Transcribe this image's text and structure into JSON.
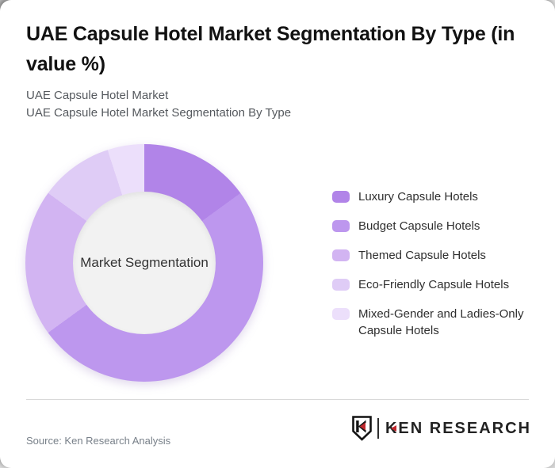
{
  "page": {
    "title": "UAE Capsule Hotel Market Segmentation By Type (in value %)",
    "subtitle_line1": "UAE Capsule Hotel Market",
    "subtitle_line2": "UAE Capsule Hotel Market Segmentation By Type",
    "source": "Source: Ken Research Analysis",
    "logo_text": "KEN RESEARCH",
    "logo_icon": "ken-research-shield-k-icon"
  },
  "chart_data": {
    "type": "pie",
    "donut": true,
    "title": "UAE Capsule Hotel Market Segmentation By Type (in value %)",
    "center_label": "Market Segmentation",
    "categories": [
      "Luxury Capsule Hotels",
      "Budget Capsule Hotels",
      "Themed Capsule Hotels",
      "Eco-Friendly Capsule Hotels",
      "Mixed-Gender and Ladies-Only Capsule Hotels"
    ],
    "values": [
      15,
      50,
      20,
      10,
      5
    ],
    "unit": "% of market value (estimated from arc angles, no data labels shown)",
    "colors": [
      "#b184e8",
      "#bd97ee",
      "#d2b4f2",
      "#dfccf6",
      "#ecdffb"
    ],
    "hole_color": "#f2f2f2",
    "start_angle_deg": 0,
    "direction": "clockwise",
    "legend_position": "right"
  }
}
